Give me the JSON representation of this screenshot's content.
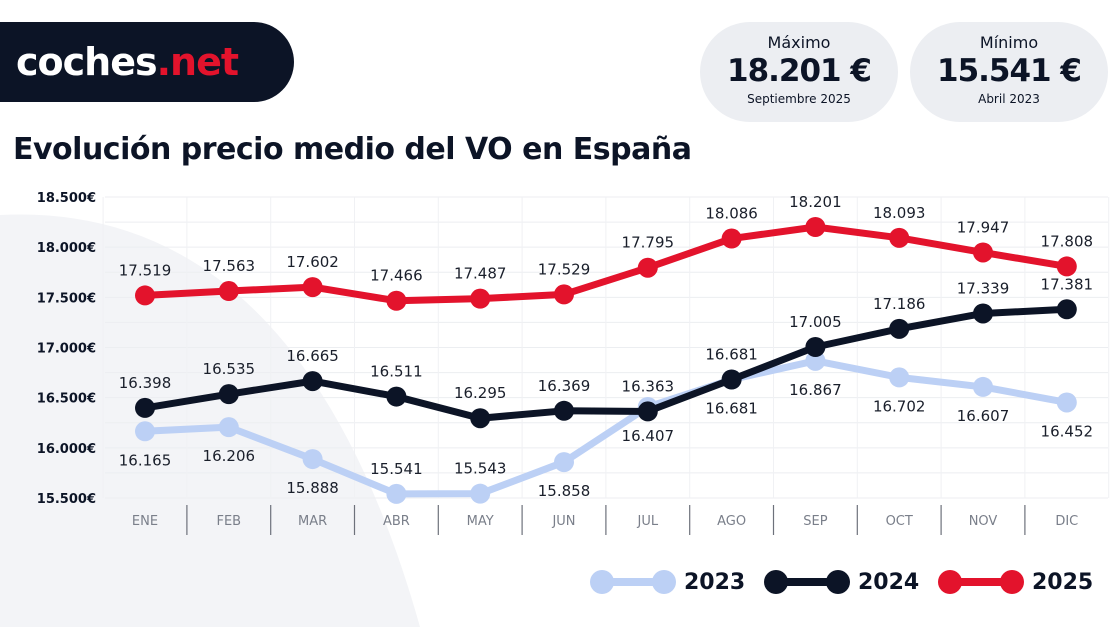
{
  "logo": {
    "text_main": "coches",
    "text_accent": ".net"
  },
  "stats": {
    "max": {
      "label": "Máximo",
      "value": "18.201 €",
      "period": "Septiembre 2025"
    },
    "min": {
      "label": "Mínimo",
      "value": "15.541 €",
      "period": "Abril 2023"
    }
  },
  "chart_data": {
    "type": "line",
    "title": "Evolución precio medio del VO en España",
    "categories": [
      "ENE",
      "FEB",
      "MAR",
      "ABR",
      "MAY",
      "JUN",
      "JUL",
      "AGO",
      "SEP",
      "OCT",
      "NOV",
      "DIC"
    ],
    "ylim": [
      15500,
      18500
    ],
    "yticks": [
      15500,
      16000,
      16500,
      17000,
      17500,
      18000,
      18500
    ],
    "ytick_labels": [
      "15.500€",
      "16.000€",
      "16.500€",
      "17.000€",
      "17.500€",
      "18.000€",
      "18.500€"
    ],
    "grid": true,
    "legend": "bottom-right",
    "series": [
      {
        "name": "2023",
        "color": "#bcd0f5",
        "values": [
          16165,
          16206,
          15888,
          15541,
          15543,
          15858,
          16407,
          16681,
          16867,
          16702,
          16607,
          16452
        ],
        "labels": [
          "16.165",
          "16.206",
          "15.888",
          "15.541",
          "15.543",
          "15.858",
          "16.407",
          "16.681",
          "16.867",
          "16.702",
          "16.607",
          "16.452"
        ],
        "label_pos": "below"
      },
      {
        "name": "2024",
        "color": "#0c1426",
        "values": [
          16398,
          16535,
          16665,
          16511,
          16295,
          16369,
          16363,
          16681,
          17005,
          17186,
          17339,
          17381
        ],
        "labels": [
          "16.398",
          "16.535",
          "16.665",
          "16.511",
          "16.295",
          "16.369",
          "16.363",
          "16.681",
          "17.005",
          "17.186",
          "17.339",
          "17.381"
        ],
        "label_pos": "above"
      },
      {
        "name": "2025",
        "color": "#e3132c",
        "values": [
          17519,
          17563,
          17602,
          17466,
          17487,
          17529,
          17795,
          18086,
          18201,
          18093,
          17947,
          17808
        ],
        "labels": [
          "17.519",
          "17.563",
          "17.602",
          "17.466",
          "17.487",
          "17.529",
          "17.795",
          "18.086",
          "18.201",
          "18.093",
          "17.947",
          "17.808"
        ],
        "label_pos": "above"
      }
    ]
  }
}
